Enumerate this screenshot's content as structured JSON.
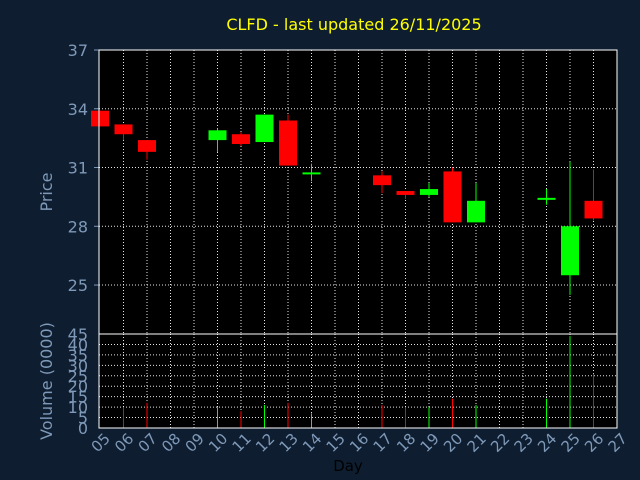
{
  "colors": {
    "background": "#0e1e30",
    "plot_background": "#000000",
    "title": "#ffff00",
    "axis_text": "#7f99b8",
    "label_text": "#000000",
    "grid": "#ffffff",
    "up": "#00ff00",
    "down": "#ff0000",
    "neutral": "#00ff00"
  },
  "chart_data": {
    "type": "candlestick",
    "title": "CLFD - last updated 26/11/2025",
    "xlabel": "Day",
    "x_ticks": [
      "05",
      "06",
      "07",
      "08",
      "09",
      "10",
      "11",
      "12",
      "13",
      "14",
      "15",
      "16",
      "17",
      "18",
      "19",
      "20",
      "21",
      "22",
      "23",
      "24",
      "25",
      "26",
      "27"
    ],
    "grid": true,
    "price_panel": {
      "ylabel": "Price",
      "ylim": [
        22.5,
        37
      ],
      "y_ticks": [
        25,
        28,
        31,
        34,
        37
      ],
      "candles": [
        {
          "day": "05",
          "open": 33.9,
          "high": 33.9,
          "low": 33.1,
          "close": 33.1
        },
        {
          "day": "06",
          "open": 33.2,
          "high": 33.2,
          "low": 32.4,
          "close": 32.7
        },
        {
          "day": "07",
          "open": 32.4,
          "high": 32.4,
          "low": 31.4,
          "close": 31.8
        },
        {
          "day": "10",
          "open": 32.4,
          "high": 33.0,
          "low": 31.8,
          "close": 32.9
        },
        {
          "day": "11",
          "open": 32.7,
          "high": 32.8,
          "low": 32.1,
          "close": 32.2
        },
        {
          "day": "12",
          "open": 32.3,
          "high": 33.7,
          "low": 32.3,
          "close": 33.7
        },
        {
          "day": "13",
          "open": 33.4,
          "high": 33.7,
          "low": 31.1,
          "close": 31.1
        },
        {
          "day": "14",
          "open": 30.7,
          "high": 31.2,
          "low": 30.3,
          "close": 30.7
        },
        {
          "day": "17",
          "open": 30.6,
          "high": 30.8,
          "low": 29.7,
          "close": 30.1
        },
        {
          "day": "18",
          "open": 29.8,
          "high": 29.8,
          "low": 29.4,
          "close": 29.6
        },
        {
          "day": "19",
          "open": 29.6,
          "high": 30.2,
          "low": 29.5,
          "close": 29.9
        },
        {
          "day": "20",
          "open": 30.8,
          "high": 31.0,
          "low": 28.2,
          "close": 28.2
        },
        {
          "day": "21",
          "open": 28.2,
          "high": 30.2,
          "low": 28.2,
          "close": 29.3
        },
        {
          "day": "24",
          "open": 29.4,
          "high": 29.9,
          "low": 29.1,
          "close": 29.4
        },
        {
          "day": "25",
          "open": 25.5,
          "high": 31.3,
          "low": 24.5,
          "close": 28.0
        },
        {
          "day": "26",
          "open": 29.3,
          "high": 30.9,
          "low": 28.3,
          "close": 28.4
        }
      ]
    },
    "volume_panel": {
      "ylabel": "Volume (0000)",
      "ylim": [
        0,
        45
      ],
      "y_ticks": [
        0,
        5,
        10,
        15,
        20,
        25,
        30,
        35,
        40,
        45
      ],
      "bars": [
        {
          "day": "05",
          "value": 0,
          "direction": "down"
        },
        {
          "day": "06",
          "value": 10,
          "direction": "down"
        },
        {
          "day": "07",
          "value": 12,
          "direction": "down"
        },
        {
          "day": "10",
          "value": 10,
          "direction": "up"
        },
        {
          "day": "11",
          "value": 8,
          "direction": "down"
        },
        {
          "day": "12",
          "value": 11,
          "direction": "up"
        },
        {
          "day": "13",
          "value": 12,
          "direction": "down"
        },
        {
          "day": "14",
          "value": 7,
          "direction": "up"
        },
        {
          "day": "17",
          "value": 11,
          "direction": "down"
        },
        {
          "day": "18",
          "value": 10,
          "direction": "down"
        },
        {
          "day": "19",
          "value": 10,
          "direction": "up"
        },
        {
          "day": "20",
          "value": 14,
          "direction": "down"
        },
        {
          "day": "21",
          "value": 11,
          "direction": "up"
        },
        {
          "day": "24",
          "value": 14,
          "direction": "up"
        },
        {
          "day": "25",
          "value": 44,
          "direction": "up"
        },
        {
          "day": "26",
          "value": 26,
          "direction": "down"
        }
      ]
    }
  }
}
